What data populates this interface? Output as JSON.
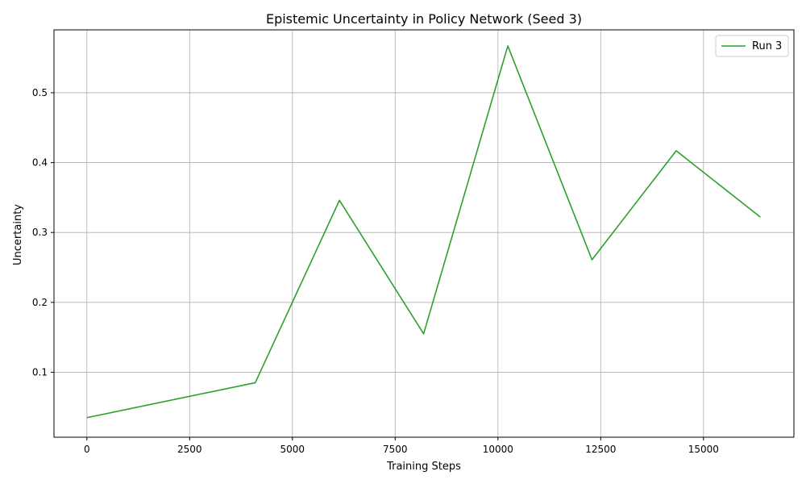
{
  "chart_data": {
    "type": "line",
    "title": "Epistemic Uncertainty in Policy Network (Seed 3)",
    "xlabel": "Training Steps",
    "ylabel": "Uncertainty",
    "xlim": [
      -800,
      17200
    ],
    "ylim": [
      0.007,
      0.59
    ],
    "x_ticks": [
      0,
      2500,
      5000,
      7500,
      10000,
      12500,
      15000
    ],
    "y_ticks": [
      0.1,
      0.2,
      0.3,
      0.4,
      0.5
    ],
    "grid": true,
    "legend_position": "top-right",
    "series": [
      {
        "name": "Run 3",
        "color": "#2ca02c",
        "x": [
          0,
          4096,
          6144,
          8192,
          10240,
          12288,
          14336,
          16384
        ],
        "y": [
          0.035,
          0.085,
          0.346,
          0.155,
          0.567,
          0.261,
          0.417,
          0.322
        ]
      }
    ]
  }
}
